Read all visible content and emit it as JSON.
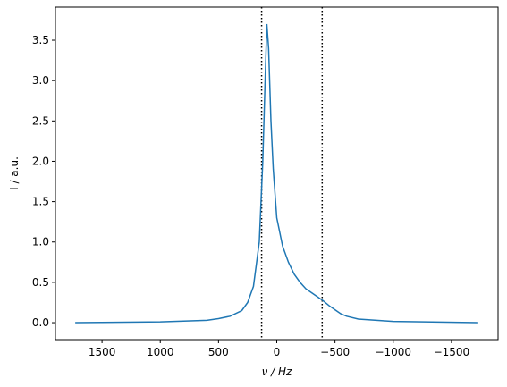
{
  "chart_data": {
    "type": "line",
    "x_label": "ν / Hz",
    "y_label": "I / a.u.",
    "series": [
      {
        "color": "#1f77b4",
        "x": [
          1730,
          1000,
          600,
          500,
          400,
          300,
          250,
          200,
          150,
          120,
          100,
          85,
          70,
          50,
          30,
          0,
          -50,
          -100,
          -150,
          -200,
          -250,
          -300,
          -350,
          -400,
          -450,
          -500,
          -550,
          -600,
          -700,
          -1000,
          -1730
        ],
        "values": [
          0.0,
          0.01,
          0.03,
          0.05,
          0.08,
          0.15,
          0.25,
          0.45,
          1.0,
          2.0,
          3.0,
          3.7,
          3.4,
          2.5,
          1.9,
          1.3,
          0.95,
          0.75,
          0.6,
          0.5,
          0.42,
          0.37,
          0.32,
          0.27,
          0.21,
          0.16,
          0.11,
          0.08,
          0.045,
          0.015,
          0.0
        ]
      }
    ],
    "vlines": [
      130,
      -390
    ],
    "xlim": [
      1900,
      -1900
    ],
    "ylim": [
      -0.21,
      3.91
    ],
    "xticks": [
      1500,
      1000,
      500,
      0,
      {
        "value": -500,
        "label": "−500"
      },
      {
        "value": -1000,
        "label": "−1000"
      },
      {
        "value": -1500,
        "label": "−1500"
      }
    ],
    "yticks": [
      {
        "value": 0,
        "label": "0.0"
      },
      0.5,
      {
        "value": 1,
        "label": "1.0"
      },
      1.5,
      {
        "value": 2,
        "label": "2.0"
      },
      2.5,
      {
        "value": 3,
        "label": "3.0"
      },
      3.5
    ]
  }
}
